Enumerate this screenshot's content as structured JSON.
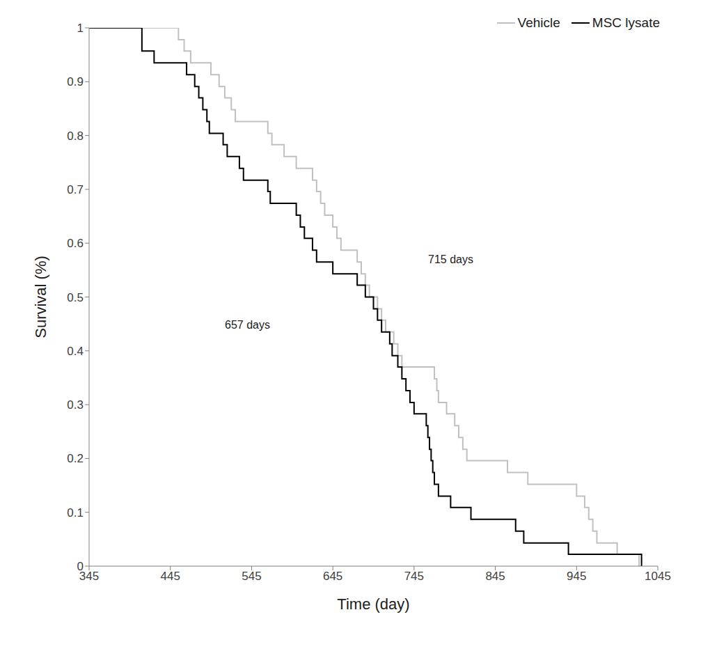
{
  "chart_data": {
    "type": "line",
    "x_label": "Time (day)",
    "y_label": "Survival (%)",
    "xlim": [
      345,
      1045
    ],
    "xticks": [
      345,
      445,
      545,
      645,
      745,
      845,
      945,
      1045
    ],
    "ylim": [
      0,
      1
    ],
    "yticks": [
      0,
      0.1,
      0.2,
      0.3,
      0.4,
      0.5,
      0.6,
      0.7,
      0.8,
      0.9,
      1
    ],
    "grid": false,
    "legend": "top-right",
    "line_style": "step",
    "annotations": [
      "715 days",
      "657 days"
    ],
    "series": [
      {
        "name": "Vehicle",
        "color": "#c0c0c0",
        "x": [
          345,
          455,
          462,
          470,
          495,
          505,
          512,
          520,
          525,
          565,
          570,
          585,
          600,
          620,
          625,
          630,
          635,
          645,
          650,
          655,
          675,
          680,
          685,
          690,
          700,
          705,
          710,
          720,
          725,
          730,
          770,
          773,
          775,
          785,
          795,
          800,
          805,
          810,
          860,
          885,
          945,
          955,
          960,
          965,
          970,
          995,
          1022
        ],
        "values": [
          1,
          0.978,
          0.957,
          0.935,
          0.913,
          0.891,
          0.87,
          0.848,
          0.826,
          0.804,
          0.783,
          0.761,
          0.739,
          0.717,
          0.696,
          0.674,
          0.652,
          0.63,
          0.609,
          0.587,
          0.565,
          0.543,
          0.522,
          0.5,
          0.478,
          0.457,
          0.435,
          0.413,
          0.391,
          0.37,
          0.348,
          0.326,
          0.304,
          0.283,
          0.261,
          0.239,
          0.217,
          0.196,
          0.174,
          0.152,
          0.13,
          0.109,
          0.087,
          0.065,
          0.043,
          0.022,
          0
        ]
      },
      {
        "name": "MSC lysate",
        "color": "#000000",
        "x": [
          345,
          410,
          425,
          465,
          475,
          480,
          485,
          490,
          493,
          510,
          515,
          530,
          535,
          565,
          568,
          600,
          605,
          610,
          620,
          625,
          645,
          675,
          685,
          695,
          700,
          705,
          715,
          718,
          725,
          730,
          735,
          740,
          745,
          760,
          762,
          764,
          766,
          768,
          770,
          775,
          790,
          815,
          870,
          880,
          935,
          1025
        ],
        "values": [
          1,
          0.957,
          0.935,
          0.913,
          0.891,
          0.87,
          0.848,
          0.826,
          0.804,
          0.783,
          0.761,
          0.739,
          0.717,
          0.696,
          0.674,
          0.652,
          0.63,
          0.609,
          0.587,
          0.565,
          0.543,
          0.522,
          0.5,
          0.478,
          0.457,
          0.435,
          0.413,
          0.391,
          0.37,
          0.348,
          0.326,
          0.304,
          0.283,
          0.261,
          0.239,
          0.217,
          0.196,
          0.174,
          0.152,
          0.13,
          0.109,
          0.087,
          0.065,
          0.043,
          0.022,
          0
        ]
      }
    ]
  }
}
